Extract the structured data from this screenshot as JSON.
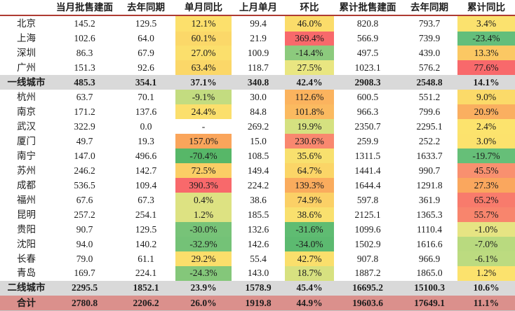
{
  "table": {
    "header": [
      "",
      "当月批售建面",
      "去年同期",
      "单月同比",
      "上月单月",
      "环比",
      "累计批售建面",
      "去年同期",
      "累计同比"
    ],
    "style": {
      "header_rule_color": "#AE3B32",
      "subtotal_row_bg": "#D9D9D9",
      "total_row_bg": "#DB908C",
      "bottom_rule_color": "#C6C6C6",
      "scale_min_color": "#63BE7B",
      "scale_mid_color": "#FFEB84",
      "scale_max_color": "#F8696B"
    },
    "rows": [
      {
        "label": "北京",
        "type": "city",
        "cells": [
          "145.2",
          "129.5",
          {
            "v": "12.1%",
            "bg": "#FCE06C"
          },
          "99.4",
          {
            "v": "46.0%",
            "bg": "#FBDC6A"
          },
          "820.8",
          "793.7",
          {
            "v": "3.4%",
            "bg": "#FBE26E"
          }
        ]
      },
      {
        "label": "上海",
        "type": "city",
        "cells": [
          "102.6",
          "64.0",
          {
            "v": "60.1%",
            "bg": "#FBD869"
          },
          "21.9",
          {
            "v": "369.4%",
            "bg": "#F8696B"
          },
          "566.9",
          "739.9",
          {
            "v": "-23.4%",
            "bg": "#63BE7B"
          }
        ]
      },
      {
        "label": "深圳",
        "type": "city",
        "cells": [
          "86.3",
          "67.9",
          {
            "v": "27.0%",
            "bg": "#FBDF6C"
          },
          "100.9",
          {
            "v": "-14.4%",
            "bg": "#8CCA7D"
          },
          "497.5",
          "439.0",
          {
            "v": "13.3%",
            "bg": "#FBC863"
          }
        ]
      },
      {
        "label": "广州",
        "type": "city",
        "cells": [
          "151.3",
          "92.6",
          {
            "v": "63.4%",
            "bg": "#FBD768"
          },
          "118.7",
          {
            "v": "27.5%",
            "bg": "#E9E681"
          },
          "1023.1",
          "576.2",
          {
            "v": "77.6%",
            "bg": "#F8696B"
          }
        ]
      },
      {
        "label": "一线城市",
        "type": "subtotal",
        "cells": [
          "485.3",
          "354.1",
          "37.1%",
          "340.8",
          "42.4%",
          "2908.3",
          "2548.8",
          "14.1%"
        ]
      },
      {
        "label": "杭州",
        "type": "city",
        "cells": [
          "63.7",
          "70.1",
          {
            "v": "-9.1%",
            "bg": "#C3DC80"
          },
          "30.0",
          {
            "v": "112.6%",
            "bg": "#FBB35E"
          },
          "600.5",
          "551.2",
          {
            "v": "9.0%",
            "bg": "#FBDA69"
          }
        ]
      },
      {
        "label": "南京",
        "type": "city",
        "cells": [
          "171.2",
          "137.6",
          {
            "v": "24.4%",
            "bg": "#FBDF6C"
          },
          "84.8",
          {
            "v": "101.8%",
            "bg": "#FBBA60"
          },
          "966.3",
          "799.6",
          {
            "v": "20.9%",
            "bg": "#FAAF60"
          }
        ]
      },
      {
        "label": "武汉",
        "type": "city",
        "cells": [
          "322.9",
          "0.0",
          {
            "v": "-"
          },
          "269.2",
          {
            "v": "19.9%",
            "bg": "#D5E180"
          },
          "2350.7",
          "2295.1",
          {
            "v": "2.4%",
            "bg": "#FCE36D"
          }
        ]
      },
      {
        "label": "厦门",
        "type": "city",
        "cells": [
          "49.7",
          "19.3",
          {
            "v": "157.0%",
            "bg": "#FAA55B"
          },
          "15.0",
          {
            "v": "230.6%",
            "bg": "#F9886F"
          },
          "259.9",
          "252.2",
          {
            "v": "3.0%",
            "bg": "#FCE26D"
          }
        ]
      },
      {
        "label": "南宁",
        "type": "city",
        "cells": [
          "147.0",
          "496.6",
          {
            "v": "-70.4%",
            "bg": "#57B768"
          },
          "108.5",
          {
            "v": "35.6%",
            "bg": "#F8E06E"
          },
          "1311.5",
          "1633.7",
          {
            "v": "-19.7%",
            "bg": "#66BF78"
          }
        ]
      },
      {
        "label": "苏州",
        "type": "city",
        "cells": [
          "246.2",
          "142.7",
          {
            "v": "72.5%",
            "bg": "#FBCE65"
          },
          "149.4",
          {
            "v": "64.7%",
            "bg": "#FBD567"
          },
          "1441.4",
          "990.7",
          {
            "v": "45.5%",
            "bg": "#F9906F"
          }
        ]
      },
      {
        "label": "成都",
        "type": "city",
        "cells": [
          "536.5",
          "109.4",
          {
            "v": "390.3%",
            "bg": "#F8696B"
          },
          "224.2",
          {
            "v": "139.3%",
            "bg": "#FAAC5D"
          },
          "1644.4",
          "1291.8",
          {
            "v": "27.3%",
            "bg": "#FAA75E"
          }
        ]
      },
      {
        "label": "福州",
        "type": "city",
        "cells": [
          "67.6",
          "67.3",
          {
            "v": "0.4%",
            "bg": "#DDE282"
          },
          "38.6",
          {
            "v": "74.9%",
            "bg": "#FBD066"
          },
          "597.8",
          "361.9",
          {
            "v": "65.2%",
            "bg": "#F87B6C"
          }
        ]
      },
      {
        "label": "昆明",
        "type": "city",
        "cells": [
          "257.2",
          "254.1",
          {
            "v": "1.2%",
            "bg": "#DDE282"
          },
          "185.5",
          {
            "v": "38.6%",
            "bg": "#F9E06E"
          },
          "2125.1",
          "1365.3",
          {
            "v": "55.7%",
            "bg": "#F8856D"
          }
        ]
      },
      {
        "label": "贵阳",
        "type": "city",
        "cells": [
          "90.7",
          "129.5",
          {
            "v": "-30.0%",
            "bg": "#77C378"
          },
          "132.6",
          {
            "v": "-31.6%",
            "bg": "#5FBC72"
          },
          "1099.6",
          "1110.4",
          {
            "v": "-1.0%",
            "bg": "#E6E483"
          }
        ]
      },
      {
        "label": "沈阳",
        "type": "city",
        "cells": [
          "94.0",
          "140.2",
          {
            "v": "-32.9%",
            "bg": "#74C277"
          },
          "142.6",
          {
            "v": "-34.0%",
            "bg": "#5CBA70"
          },
          "1502.9",
          "1616.6",
          {
            "v": "-7.0%",
            "bg": "#B9DA7F"
          }
        ]
      },
      {
        "label": "长春",
        "type": "city",
        "cells": [
          "79.0",
          "61.1",
          {
            "v": "29.2%",
            "bg": "#FBDE6B"
          },
          "55.4",
          {
            "v": "42.7%",
            "bg": "#FADF6C"
          },
          "907.8",
          "966.9",
          {
            "v": "-6.1%",
            "bg": "#BCDB80"
          }
        ]
      },
      {
        "label": "青岛",
        "type": "city",
        "cells": [
          "169.7",
          "224.1",
          {
            "v": "-24.3%",
            "bg": "#84C77A"
          },
          "143.0",
          {
            "v": "18.7%",
            "bg": "#D7E180"
          },
          "1887.2",
          "1865.0",
          {
            "v": "1.2%",
            "bg": "#FCE26D"
          }
        ]
      },
      {
        "label": "二线城市",
        "type": "subtotal",
        "cells": [
          "2295.5",
          "1852.1",
          "23.9%",
          "1578.9",
          "45.4%",
          "16695.2",
          "15100.3",
          "10.6%"
        ]
      },
      {
        "label": "合计",
        "type": "total",
        "cells": [
          "2780.8",
          "2206.2",
          "26.0%",
          "1919.8",
          "44.9%",
          "19603.6",
          "17649.1",
          "11.1%"
        ]
      }
    ]
  }
}
